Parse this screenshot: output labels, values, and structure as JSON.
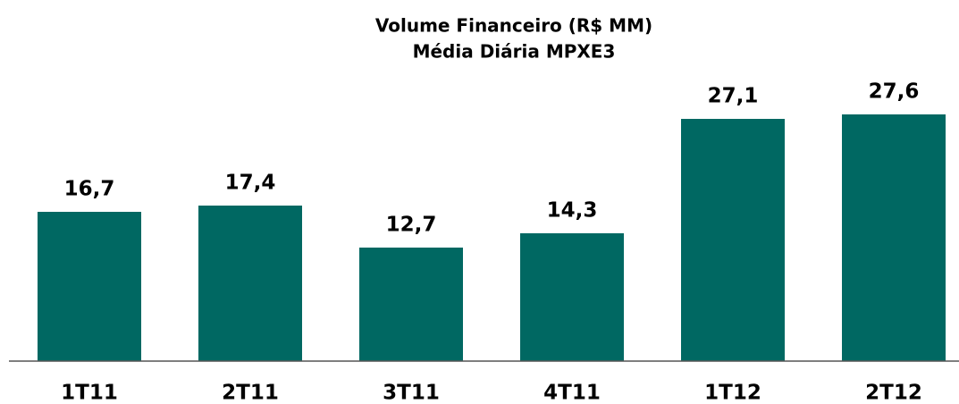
{
  "chart_data": {
    "type": "bar",
    "title": "Volume Financeiro (R$ MM)",
    "subtitle": "Média Diária MPXE3",
    "categories": [
      "1T11",
      "2T11",
      "3T11",
      "4T11",
      "1T12",
      "2T12"
    ],
    "values": [
      16.7,
      17.4,
      12.7,
      14.3,
      27.1,
      27.6
    ],
    "value_labels": [
      "16,7",
      "17,4",
      "12,7",
      "14,3",
      "27,1",
      "27,6"
    ],
    "color": "#006862"
  }
}
